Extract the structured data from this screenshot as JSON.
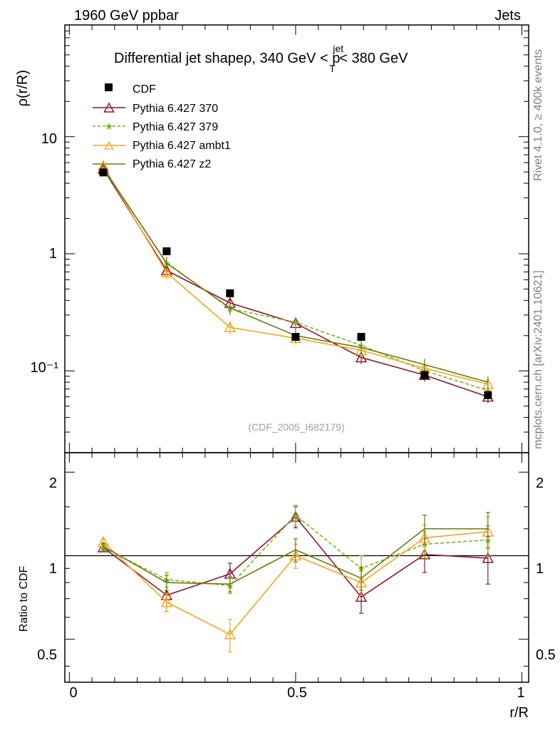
{
  "header": {
    "left": "1960 GeV ppbar",
    "right": "Jets"
  },
  "side": {
    "events": "Rivet 4.1.0, ≥ 400k events",
    "site": "mcplots.cern.ch [arXiv:2401.10621]"
  },
  "watermark": "(CDF_2005_I682179)",
  "chart_data": {
    "type": "line",
    "title": "Differential jet shapeρ, 340 GeV < p_T^jet < 380 GeV",
    "title_parts": {
      "main": "Differential jet shapeρ, 340 GeV < p",
      "sub": "T",
      "sup": "jet",
      "tail": " < 380 GeV"
    },
    "ylabel": "ρ(r/R)",
    "ratio_ylabel": "Ratio to CDF",
    "xlabel": "r/R",
    "xlim": [
      -0.01,
      1.015
    ],
    "ylim_log": [
      0.02,
      90
    ],
    "ratio_ylim": [
      0.35,
      2.35
    ],
    "x_ticks": [
      "0",
      "0.5",
      "1"
    ],
    "y_ticks": [
      "10⁻¹",
      "1",
      "10"
    ],
    "ratio_ticks": [
      "0.5",
      "1",
      "2"
    ],
    "x": [
      0.075,
      0.215,
      0.355,
      0.5,
      0.645,
      0.785,
      0.925
    ],
    "data": {
      "name": "CDF",
      "color": "#000000",
      "values": [
        4.95,
        1.05,
        0.46,
        0.195,
        0.195,
        0.092,
        0.062
      ]
    },
    "series": [
      {
        "name": "Pythia 6.427 370",
        "color": "#8b1a2f",
        "marker": "triangle-open",
        "dash": false,
        "values": [
          5.3,
          0.72,
          0.38,
          0.255,
          0.13,
          0.092,
          0.06
        ],
        "ratio": [
          1.07,
          0.72,
          0.86,
          1.38,
          0.71,
          1.01,
          0.98
        ],
        "ratio_err": [
          0.03,
          0.09,
          0.08,
          0.12,
          0.09,
          0.14,
          0.19
        ]
      },
      {
        "name": "Pythia 6.427 379",
        "color": "#7cb518",
        "marker": "star",
        "dash": true,
        "values": [
          5.3,
          0.84,
          0.34,
          0.26,
          0.165,
          0.1,
          0.068
        ],
        "ratio": [
          1.07,
          0.82,
          0.78,
          1.4,
          0.9,
          1.1,
          1.14
        ],
        "ratio_err": [
          0.03,
          0.05,
          0.05,
          0.12,
          0.1,
          0.12,
          0.14
        ]
      },
      {
        "name": "Pythia 6.427 ambt1",
        "color": "#f5a623",
        "marker": "triangle-open",
        "dash": false,
        "values": [
          5.6,
          0.69,
          0.235,
          0.19,
          0.15,
          0.105,
          0.077
        ],
        "ratio": [
          1.12,
          0.68,
          0.52,
          1.0,
          0.8,
          1.16,
          1.22
        ],
        "ratio_err": [
          0.03,
          0.05,
          0.07,
          0.1,
          0.08,
          0.13,
          0.16
        ]
      },
      {
        "name": "Pythia 6.427 z2",
        "color": "#6b7a12",
        "marker": "line",
        "dash": false,
        "values": [
          5.4,
          0.83,
          0.345,
          0.2,
          0.158,
          0.113,
          0.08
        ],
        "ratio": [
          1.08,
          0.8,
          0.79,
          1.05,
          0.83,
          1.25,
          1.25
        ],
        "ratio_err": [
          0.03,
          0.05,
          0.05,
          0.1,
          0.08,
          0.15,
          0.18
        ]
      }
    ]
  }
}
